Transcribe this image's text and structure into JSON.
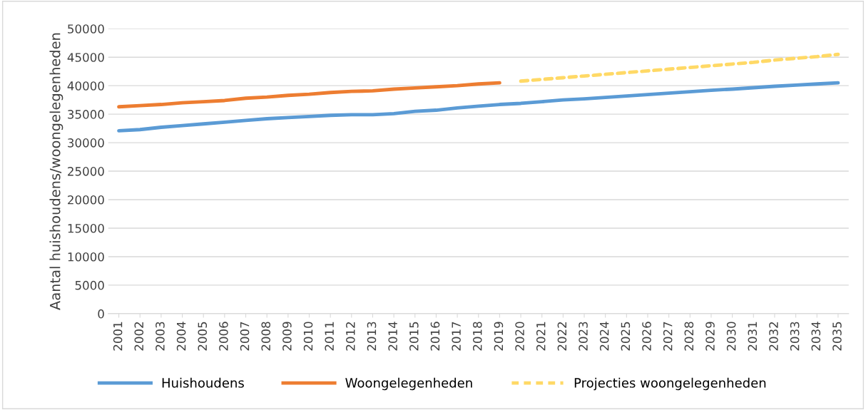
{
  "chart_data": {
    "type": "line",
    "ylabel": "Aantal huishoudens/woongelegenheden",
    "categories": [
      "2001",
      "2002",
      "2003",
      "2004",
      "2005",
      "2006",
      "2007",
      "2008",
      "2009",
      "2010",
      "2011",
      "2012",
      "2013",
      "2014",
      "2015",
      "2016",
      "2017",
      "2018",
      "2019",
      "2020",
      "2021",
      "2022",
      "2023",
      "2024",
      "2025",
      "2026",
      "2027",
      "2028",
      "2029",
      "2030",
      "2031",
      "2032",
      "2033",
      "2034",
      "2035"
    ],
    "series": [
      {
        "name": "Huishoudens",
        "color": "#5b9bd5",
        "line_style": "solid",
        "values": [
          32100,
          32300,
          32700,
          33000,
          33300,
          33600,
          33900,
          34200,
          34400,
          34600,
          34800,
          34900,
          34900,
          35100,
          35500,
          35700,
          36100,
          36400,
          36700,
          36900,
          37200,
          37500,
          37700,
          37950,
          38200,
          38450,
          38700,
          38950,
          39200,
          39400,
          39650,
          39900,
          40100,
          40300,
          40500
        ]
      },
      {
        "name": "Woongelegenheden",
        "color": "#ed7d31",
        "line_style": "solid",
        "values": [
          36300,
          36500,
          36700,
          37000,
          37200,
          37400,
          37800,
          38000,
          38300,
          38500,
          38800,
          39000,
          39100,
          39400,
          39600,
          39800,
          40000,
          40300,
          40500,
          null,
          null,
          null,
          null,
          null,
          null,
          null,
          null,
          null,
          null,
          null,
          null,
          null,
          null,
          null,
          null
        ]
      },
      {
        "name": "Projecties woongelegenheden",
        "color": "#ffd966",
        "line_style": "dashed",
        "values": [
          null,
          null,
          null,
          null,
          null,
          null,
          null,
          null,
          null,
          null,
          null,
          null,
          null,
          null,
          null,
          null,
          null,
          null,
          null,
          40800,
          41100,
          41400,
          41700,
          42000,
          42300,
          42600,
          42900,
          43200,
          43500,
          43800,
          44100,
          44500,
          44800,
          45100,
          45500
        ]
      }
    ],
    "ylim": [
      0,
      50000
    ],
    "yticks": [
      0,
      5000,
      10000,
      15000,
      20000,
      25000,
      30000,
      35000,
      40000,
      45000,
      50000
    ],
    "grid": "y",
    "legend": "bottom",
    "marker": "none"
  }
}
